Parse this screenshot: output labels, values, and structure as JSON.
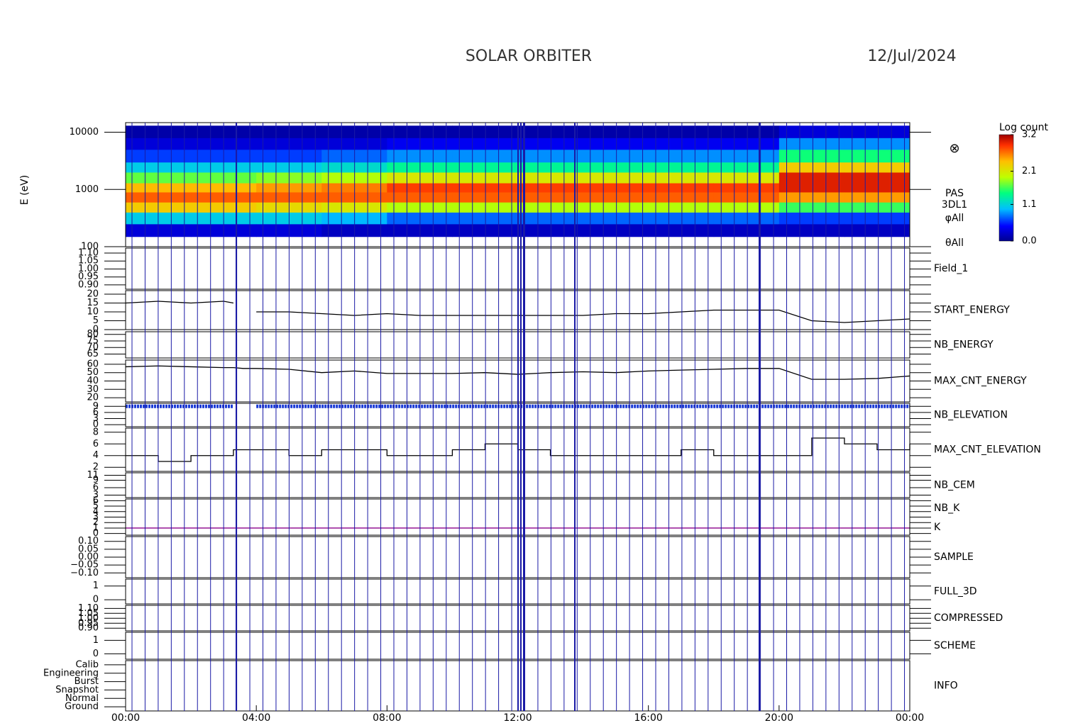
{
  "chart_data": [
    {
      "type": "heatmap",
      "title": "SOLAR ORBITER",
      "subtitle": "12/Jul/2024",
      "ylabel": "E (eV)",
      "log": true,
      "xlim": [
        0,
        24
      ],
      "ylim": [
        100,
        14700
      ],
      "yticks": [
        100,
        1000,
        10000
      ],
      "labels": [
        {
          "text": "PAS",
          "color": "#000000"
        },
        {
          "text": "3DL1",
          "color": "#000000"
        },
        {
          "text": "φAll",
          "color": "#000000"
        },
        {
          "text": "θAll",
          "color": "#000000"
        }
      ],
      "symbol": "⊗",
      "time_edges": [
        0,
        2,
        4,
        6,
        8,
        10,
        12,
        14,
        16,
        18,
        20,
        22,
        24
      ],
      "energy_edges": [
        150,
        250,
        400,
        600,
        900,
        1300,
        2000,
        3000,
        5000,
        8000,
        13000
      ],
      "z": [
        [
          0.3,
          1.0,
          2.2,
          2.6,
          2.3,
          1.6,
          1.0,
          0.6,
          0.3,
          0.1
        ],
        [
          0.3,
          1.0,
          2.2,
          2.6,
          2.3,
          1.6,
          1.0,
          0.6,
          0.3,
          0.1
        ],
        [
          0.3,
          1.0,
          2.1,
          2.6,
          2.4,
          1.7,
          1.0,
          0.6,
          0.3,
          0.1
        ],
        [
          0.2,
          0.9,
          2.0,
          2.6,
          2.5,
          1.8,
          1.1,
          0.7,
          0.3,
          0.1
        ],
        [
          0.2,
          0.7,
          1.8,
          2.6,
          2.7,
          2.0,
          1.3,
          0.8,
          0.4,
          0.1
        ],
        [
          0.2,
          0.7,
          1.8,
          2.6,
          2.7,
          2.0,
          1.3,
          0.8,
          0.4,
          0.1
        ],
        [
          0.2,
          0.7,
          1.8,
          2.6,
          2.7,
          2.0,
          1.3,
          0.8,
          0.4,
          0.1
        ],
        [
          0.2,
          0.7,
          1.8,
          2.6,
          2.7,
          2.0,
          1.3,
          0.8,
          0.4,
          0.1
        ],
        [
          0.2,
          0.7,
          1.8,
          2.6,
          2.7,
          2.0,
          1.3,
          0.8,
          0.4,
          0.1
        ],
        [
          0.2,
          0.7,
          1.8,
          2.6,
          2.7,
          2.0,
          1.3,
          0.8,
          0.4,
          0.1
        ],
        [
          0.2,
          0.6,
          1.5,
          2.4,
          2.9,
          2.9,
          2.2,
          1.4,
          0.8,
          0.3
        ],
        [
          0.2,
          0.6,
          1.5,
          2.4,
          2.9,
          2.9,
          2.2,
          1.4,
          0.8,
          0.3
        ]
      ],
      "colorbar": {
        "label": "Log count",
        "lim": [
          0,
          3.2
        ],
        "ticks": [
          {
            "value": 0,
            "label": "0.0"
          },
          1.1,
          2.1,
          3.2
        ]
      }
    },
    {
      "type": "line",
      "xlim": [
        0,
        24
      ],
      "ylim": [
        0.873,
        1.131
      ],
      "yticks": [
        {
          "value": 0.9,
          "label": "0.90"
        },
        {
          "value": 0.95,
          "label": "0.95"
        },
        {
          "value": 1.0,
          "label": "1.00"
        },
        {
          "value": 1.05,
          "label": "1.05"
        },
        {
          "value": 1.1,
          "label": "1.10"
        }
      ],
      "labels": [
        {
          "text": "Field_1",
          "color": "#1a1aa6"
        }
      ]
    },
    {
      "type": "line",
      "xlim": [
        0,
        24
      ],
      "ylim": [
        0,
        22
      ],
      "yticks": [
        0,
        5,
        10,
        15,
        20
      ],
      "labels": [
        {
          "text": "START_ENERGY",
          "color": "#000000"
        }
      ],
      "x": [
        0,
        1,
        2,
        3,
        3.3,
        3.6,
        4,
        5,
        6,
        7,
        8,
        9,
        10,
        11,
        12,
        13,
        14,
        15,
        16,
        17,
        18,
        19,
        20,
        21,
        22,
        23,
        24
      ],
      "series": [
        {
          "color": "#000000",
          "values": [
            15,
            16,
            15,
            16,
            15,
            null,
            10,
            10,
            9,
            8,
            9,
            8,
            8,
            8,
            8,
            8,
            8,
            9,
            9,
            10,
            11,
            11,
            11,
            5,
            4,
            5,
            6
          ]
        }
      ]
    },
    {
      "type": "line",
      "xlim": [
        0,
        24
      ],
      "ylim": [
        62,
        82
      ],
      "yticks": [
        65,
        70,
        75,
        80
      ],
      "labels": [
        {
          "text": "NB_ENERGY",
          "color": "#1a1aa6"
        }
      ]
    },
    {
      "type": "line",
      "xlim": [
        0,
        24
      ],
      "ylim": [
        15,
        65
      ],
      "yticks": [
        20,
        30,
        40,
        50,
        60
      ],
      "labels": [
        {
          "text": "MAX_CNT_ENERGY",
          "color": "#000000"
        }
      ],
      "x": [
        0,
        1,
        2,
        3,
        3.3,
        3.6,
        4,
        5,
        6,
        7,
        8,
        9,
        10,
        11,
        12,
        13,
        14,
        15,
        16,
        17,
        18,
        19,
        20,
        21,
        22,
        23,
        24
      ],
      "series": [
        {
          "color": "#000000",
          "values": [
            57,
            58,
            57,
            56,
            56,
            55,
            55,
            54,
            50,
            52,
            49,
            49,
            49,
            50,
            48,
            50,
            51,
            50,
            52,
            53,
            54,
            55,
            55,
            42,
            42,
            43,
            46
          ]
        }
      ]
    },
    {
      "type": "line",
      "xlim": [
        0,
        24
      ],
      "ylim": [
        -1,
        10.5
      ],
      "yticks": [
        0,
        3,
        6,
        9
      ],
      "labels": [
        {
          "text": "NB_ELEVATION",
          "color": "#1a1aa6"
        }
      ],
      "x": [
        0,
        1,
        2,
        3,
        3.3,
        3.6,
        4,
        5,
        6,
        7,
        8,
        9,
        10,
        11,
        12,
        13,
        14,
        15,
        16,
        17,
        18,
        19,
        20,
        21,
        22,
        23,
        24
      ],
      "series": [
        {
          "color": "#1a3ad6",
          "dashed": true,
          "values": [
            9,
            9,
            9,
            9,
            9,
            null,
            9,
            9,
            9,
            9,
            9,
            9,
            9,
            9,
            9,
            9,
            9,
            9,
            9,
            9,
            9,
            9,
            9,
            9,
            9,
            9,
            9
          ]
        }
      ]
    },
    {
      "type": "line",
      "xlim": [
        0,
        24
      ],
      "ylim": [
        1.3,
        8.7
      ],
      "yticks": [
        2,
        4,
        6,
        8
      ],
      "labels": [
        {
          "text": "MAX_CNT_ELEVATION",
          "color": "#000000"
        }
      ],
      "x": [
        0,
        1,
        2,
        3,
        3.3,
        3.6,
        4,
        5,
        6,
        7,
        8,
        9,
        10,
        11,
        12,
        13,
        14,
        15,
        16,
        17,
        18,
        19,
        20,
        21,
        22,
        23,
        24
      ],
      "series": [
        {
          "color": "#000000",
          "step": true,
          "values": [
            4,
            3,
            4,
            4,
            5,
            5,
            5,
            4,
            5,
            5,
            4,
            4,
            5,
            6,
            5,
            4,
            4,
            4,
            4,
            5,
            4,
            4,
            4,
            7,
            6,
            5,
            6
          ]
        }
      ]
    },
    {
      "type": "line",
      "xlim": [
        0,
        24
      ],
      "ylim": [
        2,
        12
      ],
      "yticks": [
        3,
        6,
        9,
        11
      ],
      "labels": [
        {
          "text": "NB_CEM",
          "color": "#1a1aa6"
        }
      ]
    },
    {
      "type": "line",
      "xlim": [
        0,
        24
      ],
      "ylim": [
        -0.3,
        6.3
      ],
      "yticks": [
        0,
        1,
        2,
        3,
        4,
        5,
        6
      ],
      "labels": [
        {
          "text": "NB_K",
          "color": "#c00000"
        },
        {
          "text": "K",
          "color": "#1a1aa6"
        }
      ],
      "x": [
        0,
        24
      ],
      "series": [
        {
          "color": "#8b008b",
          "values": [
            1,
            1
          ]
        }
      ]
    },
    {
      "type": "line",
      "xlim": [
        0,
        24
      ],
      "ylim": [
        -0.13,
        0.13
      ],
      "yticks": [
        {
          "value": -0.1,
          "label": "−0.10"
        },
        {
          "value": -0.05,
          "label": "−0.05"
        },
        {
          "value": 0,
          "label": "0.00"
        },
        {
          "value": 0.05,
          "label": "0.05"
        },
        {
          "value": 0.1,
          "label": "0.10"
        }
      ],
      "labels": [
        {
          "text": "SAMPLE",
          "color": "#1a1aa6"
        }
      ]
    },
    {
      "type": "line",
      "xlim": [
        0,
        24
      ],
      "ylim": [
        -0.3,
        1.5
      ],
      "yticks": [
        0,
        1
      ],
      "labels": [
        {
          "text": "FULL_3D",
          "color": "#1a1aa6"
        }
      ]
    },
    {
      "type": "line",
      "xlim": [
        0,
        24
      ],
      "ylim": [
        0.873,
        1.131
      ],
      "yticks": [
        {
          "value": 0.9,
          "label": "0.90"
        },
        {
          "value": 0.95,
          "label": "0.95"
        },
        {
          "value": 1.0,
          "label": "1.00"
        },
        {
          "value": 1.05,
          "label": "1.05"
        },
        {
          "value": 1.1,
          "label": "1.10"
        }
      ],
      "labels": [
        {
          "text": "COMPRESSED",
          "color": "#000000"
        }
      ]
    },
    {
      "type": "line",
      "xlim": [
        0,
        24
      ],
      "ylim": [
        -0.4,
        1.6
      ],
      "yticks": [
        0,
        1
      ],
      "labels": [
        {
          "text": "SCHEME",
          "color": "#000000"
        }
      ]
    },
    {
      "type": "line",
      "xlim": [
        0,
        24
      ],
      "y_categories": [
        "Ground",
        "Normal",
        "Snapshot",
        "Burst",
        "Engineering",
        "Calib"
      ],
      "labels": [
        {
          "text": "INFO",
          "color": "#000000"
        }
      ],
      "xticks": [
        {
          "value": 0,
          "label": "00:00"
        },
        {
          "value": 4,
          "label": "04:00"
        },
        {
          "value": 8,
          "label": "08:00"
        },
        {
          "value": 12,
          "label": "12:00"
        },
        {
          "value": 16,
          "label": "16:00"
        },
        {
          "value": 20,
          "label": "20:00"
        },
        {
          "value": 24,
          "label": "00:00"
        }
      ]
    }
  ]
}
